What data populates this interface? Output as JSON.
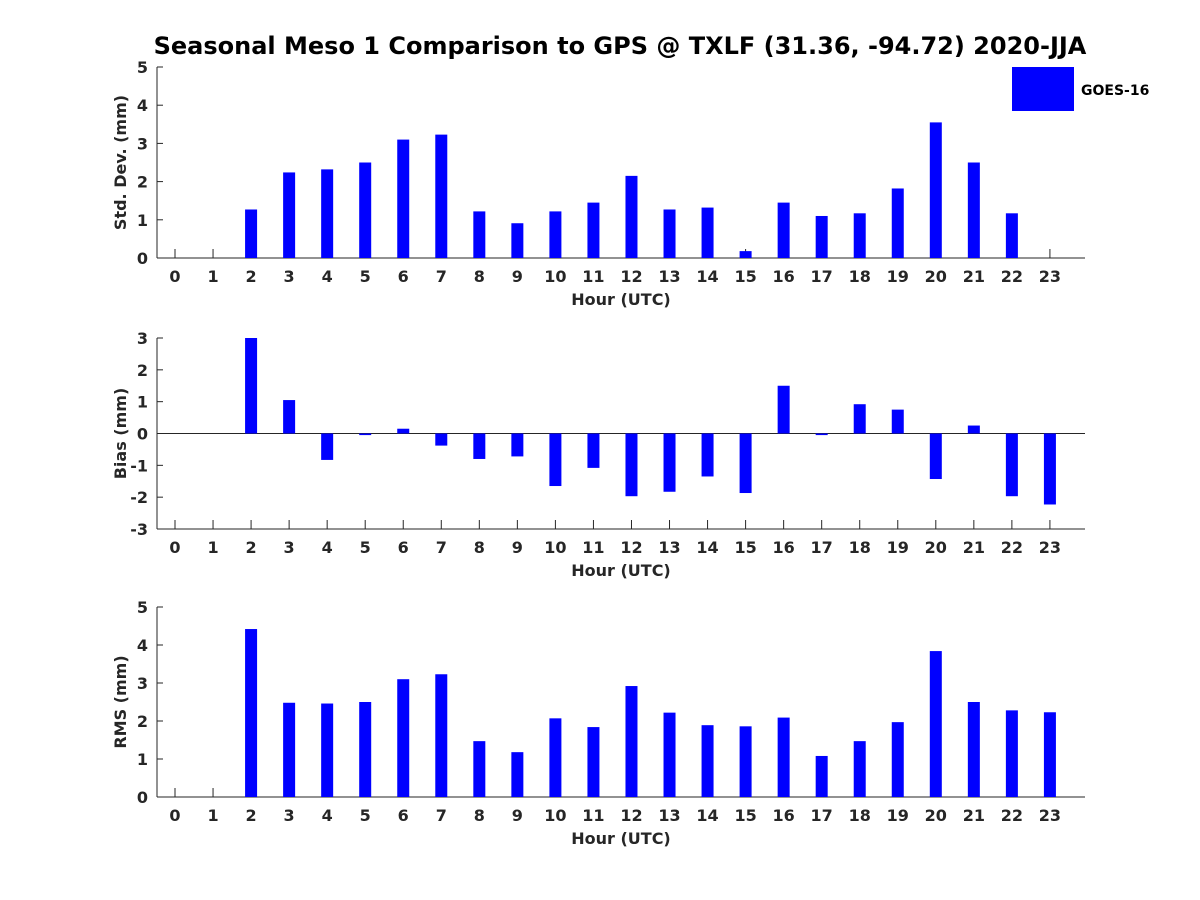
{
  "title": "Seasonal Meso 1 Comparison to GPS @ TXLF (31.36, -94.72) 2020-JJA",
  "legend": {
    "label": "GOES-16",
    "color": "#0000ff"
  },
  "chart_data": [
    {
      "type": "bar",
      "xlabel": "Hour (UTC)",
      "ylabel": "Std. Dev. (mm)",
      "ylim": [
        0,
        5
      ],
      "yticks": [
        0,
        1,
        2,
        3,
        4,
        5
      ],
      "categories": [
        "0",
        "1",
        "2",
        "3",
        "4",
        "5",
        "6",
        "7",
        "8",
        "9",
        "10",
        "11",
        "12",
        "13",
        "14",
        "15",
        "16",
        "17",
        "18",
        "19",
        "20",
        "21",
        "22",
        "23"
      ],
      "series": [
        {
          "name": "GOES-16",
          "values": [
            null,
            null,
            1.27,
            2.24,
            2.32,
            2.5,
            3.1,
            3.23,
            1.22,
            0.91,
            1.22,
            1.45,
            2.15,
            1.27,
            1.32,
            0.18,
            1.45,
            1.1,
            1.17,
            1.82,
            3.55,
            2.5,
            1.17,
            null
          ]
        }
      ]
    },
    {
      "type": "bar",
      "xlabel": "Hour (UTC)",
      "ylabel": "Bias (mm)",
      "ylim": [
        -3,
        3
      ],
      "yticks": [
        -3,
        -2,
        -1,
        0,
        1,
        2,
        3
      ],
      "categories": [
        "0",
        "1",
        "2",
        "3",
        "4",
        "5",
        "6",
        "7",
        "8",
        "9",
        "10",
        "11",
        "12",
        "13",
        "14",
        "15",
        "16",
        "17",
        "18",
        "19",
        "20",
        "21",
        "22",
        "23"
      ],
      "series": [
        {
          "name": "GOES-16",
          "values": [
            null,
            null,
            3.0,
            1.05,
            -0.83,
            -0.05,
            0.15,
            -0.38,
            -0.8,
            -0.72,
            -1.65,
            -1.08,
            -1.97,
            -1.83,
            -1.35,
            -1.87,
            1.5,
            -0.05,
            0.92,
            0.75,
            -1.43,
            0.25,
            -1.97,
            -2.23
          ]
        }
      ]
    },
    {
      "type": "bar",
      "xlabel": "Hour (UTC)",
      "ylabel": "RMS (mm)",
      "ylim": [
        0,
        5
      ],
      "yticks": [
        0,
        1,
        2,
        3,
        4,
        5
      ],
      "categories": [
        "0",
        "1",
        "2",
        "3",
        "4",
        "5",
        "6",
        "7",
        "8",
        "9",
        "10",
        "11",
        "12",
        "13",
        "14",
        "15",
        "16",
        "17",
        "18",
        "19",
        "20",
        "21",
        "22",
        "23"
      ],
      "series": [
        {
          "name": "GOES-16",
          "values": [
            null,
            null,
            4.42,
            2.48,
            2.46,
            2.5,
            3.1,
            3.23,
            1.47,
            1.18,
            2.07,
            1.84,
            2.92,
            2.22,
            1.89,
            1.86,
            2.09,
            1.08,
            1.47,
            1.97,
            3.84,
            2.5,
            2.28,
            2.23
          ]
        }
      ]
    }
  ]
}
